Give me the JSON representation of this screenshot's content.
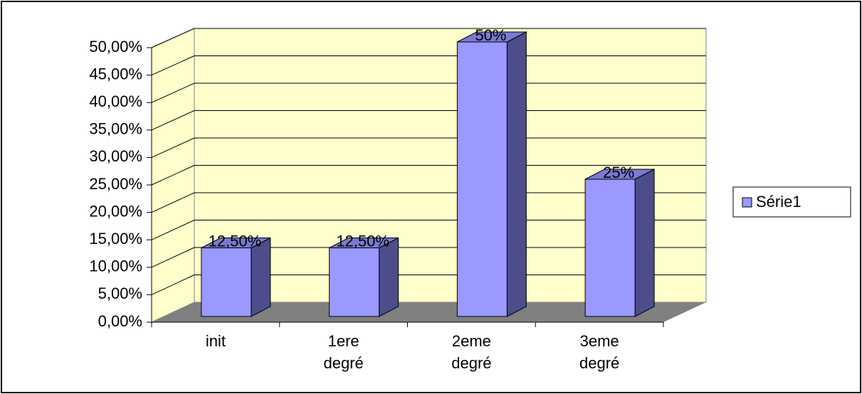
{
  "chart_data": {
    "type": "bar3d",
    "categories": [
      "init",
      "1ere degré",
      "2eme degré",
      "3eme degré"
    ],
    "series": [
      {
        "name": "Série1",
        "color": "#9999ff",
        "values": [
          12.5,
          12.5,
          50,
          25
        ],
        "value_labels": [
          "12,50%",
          "12,50%",
          "50%",
          "25%"
        ]
      }
    ],
    "ylim": [
      0,
      50
    ],
    "yticks": [
      {
        "value": 0,
        "label": "0,00%"
      },
      {
        "value": 5,
        "label": "5,00%"
      },
      {
        "value": 10,
        "label": "10,00%"
      },
      {
        "value": 15,
        "label": "15,00%"
      },
      {
        "value": 20,
        "label": "20,00%"
      },
      {
        "value": 25,
        "label": "25,00%"
      },
      {
        "value": 30,
        "label": "30,00%"
      },
      {
        "value": 35,
        "label": "35,00%"
      },
      {
        "value": 40,
        "label": "40,00%"
      },
      {
        "value": 45,
        "label": "45,00%"
      },
      {
        "value": 50,
        "label": "50,00%"
      }
    ],
    "grid": true,
    "legend": "right"
  }
}
